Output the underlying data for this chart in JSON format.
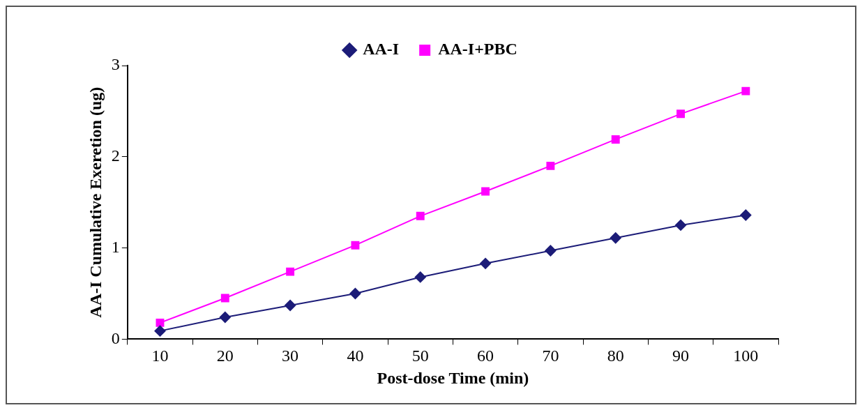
{
  "chart_data": {
    "type": "line",
    "xlabel": "Post-dose Time (min)",
    "ylabel": "AA-I Cumulative Exeretion (ug)",
    "categories": [
      "10",
      "20",
      "30",
      "40",
      "50",
      "60",
      "70",
      "80",
      "90",
      "100"
    ],
    "series": [
      {
        "name": "AA-I",
        "color": "#1c1c78",
        "marker": "diamond",
        "values": [
          0.09,
          0.24,
          0.37,
          0.5,
          0.68,
          0.83,
          0.97,
          1.11,
          1.25,
          1.36
        ]
      },
      {
        "name": "AA-I+PBC",
        "color": "#ff00ff",
        "marker": "square",
        "values": [
          0.18,
          0.45,
          0.74,
          1.03,
          1.35,
          1.62,
          1.9,
          2.19,
          2.47,
          2.72
        ]
      }
    ],
    "ylim": [
      0,
      3
    ],
    "yticks": [
      0,
      1,
      2,
      3
    ],
    "grid": false,
    "legend": "top",
    "line_style": "solid"
  }
}
